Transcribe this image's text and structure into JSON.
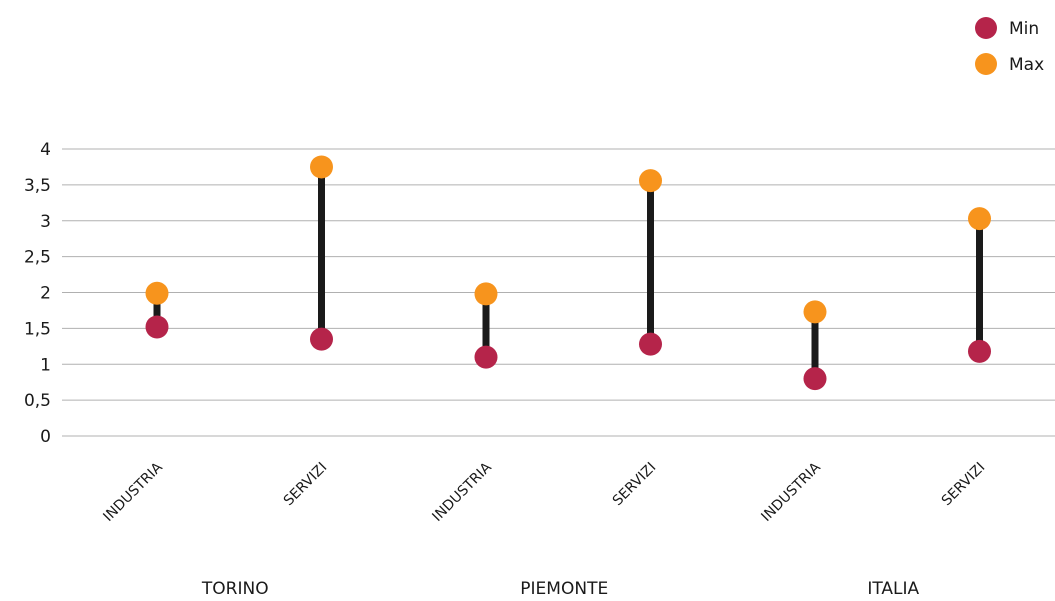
{
  "chart_data": {
    "type": "dumbbell",
    "title": "",
    "xlabel": "",
    "ylabel": "",
    "ylim": [
      0,
      4
    ],
    "y_ticks": [
      "0",
      "0,5",
      "1",
      "1,5",
      "2",
      "2,5",
      "3",
      "3,5",
      "4"
    ],
    "grid": true,
    "legend_position": "top-right",
    "categories": [
      "INDUSTRIA",
      "SERVIZI",
      "INDUSTRIA",
      "SERVIZI",
      "INDUSTRIA",
      "SERVIZI"
    ],
    "groups": [
      {
        "label": "TORINO",
        "categories": [
          0,
          1
        ]
      },
      {
        "label": "PIEMONTE",
        "categories": [
          2,
          3
        ]
      },
      {
        "label": "ITALIA",
        "categories": [
          4,
          5
        ]
      }
    ],
    "series": [
      {
        "name": "Min",
        "color": "#b5244a",
        "values": [
          1.52,
          1.35,
          1.1,
          1.28,
          0.8,
          1.18
        ]
      },
      {
        "name": "Max",
        "color": "#f7941d",
        "values": [
          1.99,
          3.75,
          1.98,
          3.56,
          1.73,
          3.03
        ]
      }
    ],
    "connector_color": "#1a1a1a",
    "grid_color": "#b0b0b0"
  }
}
